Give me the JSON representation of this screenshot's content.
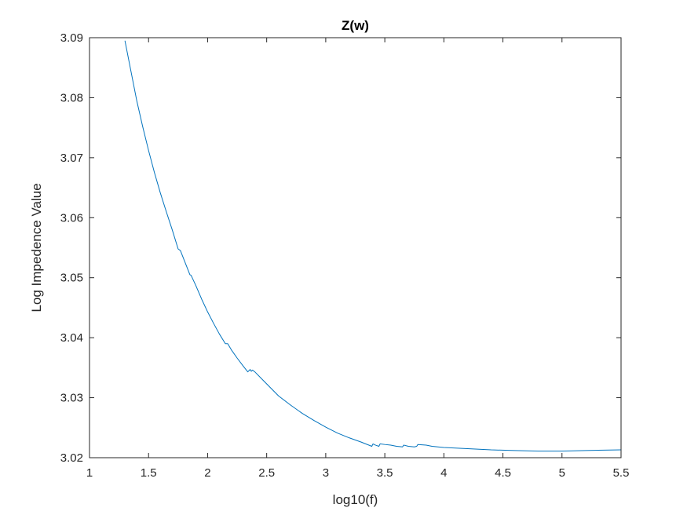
{
  "chart_data": {
    "type": "line",
    "title": "Z(w)",
    "xlabel": "log10(f)",
    "ylabel": "Log Impedence Value",
    "xlim": [
      1,
      5.5
    ],
    "ylim": [
      3.02,
      3.09
    ],
    "xticks": [
      "1",
      "1.5",
      "2",
      "2.5",
      "3",
      "3.5",
      "4",
      "4.5",
      "5",
      "5.5"
    ],
    "yticks": [
      "3.02",
      "3.03",
      "3.04",
      "3.05",
      "3.06",
      "3.07",
      "3.08",
      "3.09"
    ],
    "grid": false,
    "line_color": "#0072BD",
    "series": [
      {
        "x": [
          1.3,
          1.35,
          1.4,
          1.45,
          1.5,
          1.55,
          1.6,
          1.65,
          1.7,
          1.75,
          1.77,
          1.8,
          1.85,
          1.86,
          1.9,
          1.95,
          2.0,
          2.05,
          2.1,
          2.15,
          2.17,
          2.2,
          2.25,
          2.3,
          2.34,
          2.36,
          2.37,
          2.38,
          2.4,
          2.45,
          2.5,
          2.6,
          2.7,
          2.8,
          2.9,
          3.0,
          3.1,
          3.2,
          3.3,
          3.39,
          3.4,
          3.42,
          3.45,
          3.46,
          3.5,
          3.55,
          3.6,
          3.65,
          3.66,
          3.7,
          3.75,
          3.77,
          3.78,
          3.85,
          3.9,
          4.0,
          4.2,
          4.4,
          4.6,
          4.8,
          5.0,
          5.2,
          5.5
        ],
        "y": [
          3.0895,
          3.0845,
          3.0795,
          3.0752,
          3.0712,
          3.0675,
          3.0641,
          3.061,
          3.058,
          3.0548,
          3.0545,
          3.053,
          3.0505,
          3.0504,
          3.0487,
          3.0464,
          3.0443,
          3.0424,
          3.0406,
          3.039,
          3.039,
          3.038,
          3.0366,
          3.0353,
          3.0343,
          3.0347,
          3.0344,
          3.0346,
          3.0343,
          3.0333,
          3.0323,
          3.0303,
          3.0288,
          3.0274,
          3.0262,
          3.0251,
          3.0241,
          3.0233,
          3.0226,
          3.0219,
          3.0223,
          3.0221,
          3.0219,
          3.0223,
          3.0222,
          3.0221,
          3.0219,
          3.0218,
          3.0221,
          3.0219,
          3.0218,
          3.0219,
          3.0222,
          3.0221,
          3.0219,
          3.0217,
          3.0215,
          3.0213,
          3.0212,
          3.0211,
          3.0211,
          3.0212,
          3.0213
        ]
      }
    ]
  }
}
